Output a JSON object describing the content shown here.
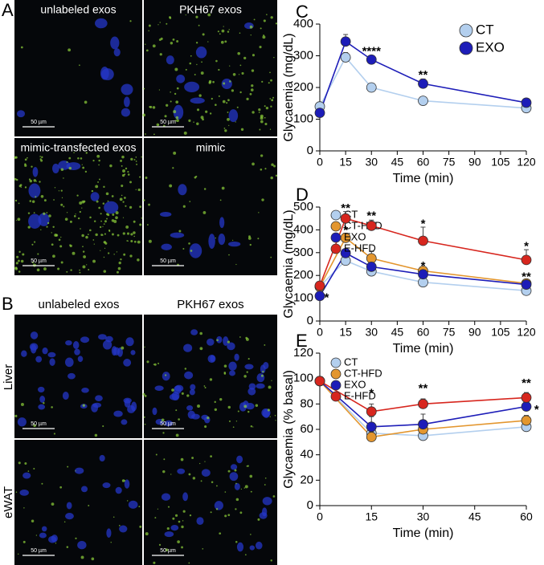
{
  "panels": {
    "A": {
      "letter": "A",
      "images": [
        {
          "label": "unlabeled exos",
          "scale_bar": "50 µm"
        },
        {
          "label": "PKH67 exos",
          "scale_bar": "50 µm"
        },
        {
          "label": "mimic-transfected exos",
          "scale_bar": "50 µm"
        },
        {
          "label": "mimic",
          "scale_bar": "50 µm"
        }
      ]
    },
    "B": {
      "letter": "B",
      "columns": [
        "unlabeled exos",
        "PKH67 exos"
      ],
      "rows": [
        "Liver",
        "eWAT"
      ],
      "scale_bars": [
        "50 µm",
        "50 µm",
        "50 µm",
        "50 µm"
      ]
    }
  },
  "chart_data": [
    {
      "type": "line",
      "panel_label": "C",
      "x_label": "Time (min)",
      "y_label": "Glycaemia (mg/dL)",
      "x": [
        0,
        15,
        30,
        60,
        120
      ],
      "xlim": [
        0,
        120
      ],
      "xticks": [
        0,
        15,
        30,
        45,
        60,
        75,
        90,
        105,
        120
      ],
      "ylim": [
        0,
        400
      ],
      "yticks": [
        0,
        100,
        200,
        300,
        400
      ],
      "series": [
        {
          "name": "CT",
          "color": "#b3cfee",
          "values": [
            140,
            295,
            200,
            158,
            135
          ],
          "errors": [
            5,
            15,
            8,
            10,
            5
          ]
        },
        {
          "name": "EXO",
          "color": "#1d1db8",
          "values": [
            120,
            345,
            288,
            212,
            152
          ],
          "errors": [
            5,
            22,
            12,
            15,
            8
          ]
        }
      ],
      "annotations": [
        {
          "text": "****",
          "x": 30,
          "y": 312
        },
        {
          "text": "**",
          "x": 60,
          "y": 238
        }
      ]
    },
    {
      "type": "line",
      "panel_label": "D",
      "x_label": "Time (min)",
      "y_label": "Glycaemia (mg/dL)",
      "x": [
        0,
        15,
        30,
        60,
        120
      ],
      "xlim": [
        0,
        120
      ],
      "xticks": [
        0,
        15,
        30,
        45,
        60,
        75,
        90,
        105,
        120
      ],
      "ylim": [
        0,
        500
      ],
      "yticks": [
        0,
        100,
        200,
        300,
        400,
        500
      ],
      "series": [
        {
          "name": "CT",
          "color": "#b3cfee",
          "values": [
            152,
            265,
            218,
            170,
            133
          ],
          "errors": [
            5,
            15,
            10,
            10,
            8
          ]
        },
        {
          "name": "CT-HFD",
          "color": "#e3962e",
          "values": [
            150,
            365,
            275,
            220,
            165
          ],
          "errors": [
            5,
            20,
            30,
            15,
            10
          ]
        },
        {
          "name": "EXO",
          "color": "#1d1db8",
          "values": [
            110,
            298,
            238,
            205,
            160
          ],
          "errors": [
            5,
            15,
            12,
            12,
            8
          ]
        },
        {
          "name": "E-HFD",
          "color": "#d7261e",
          "values": [
            155,
            450,
            418,
            352,
            268
          ],
          "errors": [
            8,
            30,
            25,
            60,
            45
          ]
        }
      ],
      "annotations": [
        {
          "text": "*",
          "x": 4,
          "y": 100
        },
        {
          "text": "**",
          "x": 15,
          "y": 492
        },
        {
          "text": "*",
          "x": 15,
          "y": 396
        },
        {
          "text": "**",
          "x": 30,
          "y": 460
        },
        {
          "text": "*",
          "x": 60,
          "y": 425
        },
        {
          "text": "*",
          "x": 60,
          "y": 240
        },
        {
          "text": "*",
          "x": 120,
          "y": 325
        },
        {
          "text": "**",
          "x": 120,
          "y": 192
        }
      ]
    },
    {
      "type": "line",
      "panel_label": "E",
      "x_label": "Time (min)",
      "y_label": "Glycaemia (% basal)",
      "x": [
        0,
        15,
        30,
        60
      ],
      "xlim": [
        0,
        60
      ],
      "xticks": [
        0,
        15,
        30,
        45,
        60
      ],
      "ylim": [
        0,
        120
      ],
      "yticks": [
        0,
        20,
        40,
        60,
        80,
        100,
        120
      ],
      "series": [
        {
          "name": "CT",
          "color": "#b3cfee",
          "values": [
            98,
            57,
            55,
            62
          ],
          "errors": [
            1,
            4,
            3,
            3
          ]
        },
        {
          "name": "CT-HFD",
          "color": "#e3962e",
          "values": [
            98,
            54,
            60,
            67
          ],
          "errors": [
            1,
            4,
            5,
            4
          ]
        },
        {
          "name": "EXO",
          "color": "#1d1db8",
          "values": [
            98,
            62,
            64,
            78
          ],
          "errors": [
            1,
            8,
            8,
            4
          ]
        },
        {
          "name": "E-HFD",
          "color": "#d7261e",
          "values": [
            98,
            74,
            80,
            85
          ],
          "errors": [
            1,
            6,
            4,
            4
          ]
        }
      ],
      "annotations": [
        {
          "text": "*",
          "x": 15,
          "y": 88
        },
        {
          "text": "**",
          "x": 30,
          "y": 92
        },
        {
          "text": "**",
          "x": 60,
          "y": 96
        },
        {
          "text": "*",
          "x": 63,
          "y": 75
        }
      ]
    }
  ]
}
